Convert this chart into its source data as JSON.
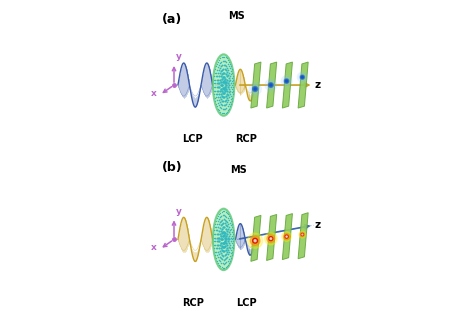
{
  "fig_width": 4.74,
  "fig_height": 3.15,
  "dpi": 100,
  "background": "#ffffff",
  "panel_a_label": "(a)",
  "panel_b_label": "(b)",
  "lcp_label": "LCP",
  "rcp_label": "RCP",
  "ms_label": "MS",
  "z_label": "z",
  "x_label": "x",
  "y_label": "y",
  "wave_blue": "#3a5aaa",
  "wave_gold": "#c8a020",
  "ms_fill": "#aaebb0",
  "ms_edge": "#60c878",
  "dot_color": "#30b8c0",
  "screen_fill": "#90cc60",
  "screen_edge": "#68a840",
  "axis_purple": "#bb66cc",
  "z_arrow_gold": "#c8a020",
  "z_arrow_blue": "#3a6ab0",
  "spot_blue_center": "#1050cc",
  "spot_blue_glow": "#80c0ff",
  "spot_red": "#dd1000",
  "spot_orange": "#ff8800",
  "spot_yellow": "#ffee00"
}
